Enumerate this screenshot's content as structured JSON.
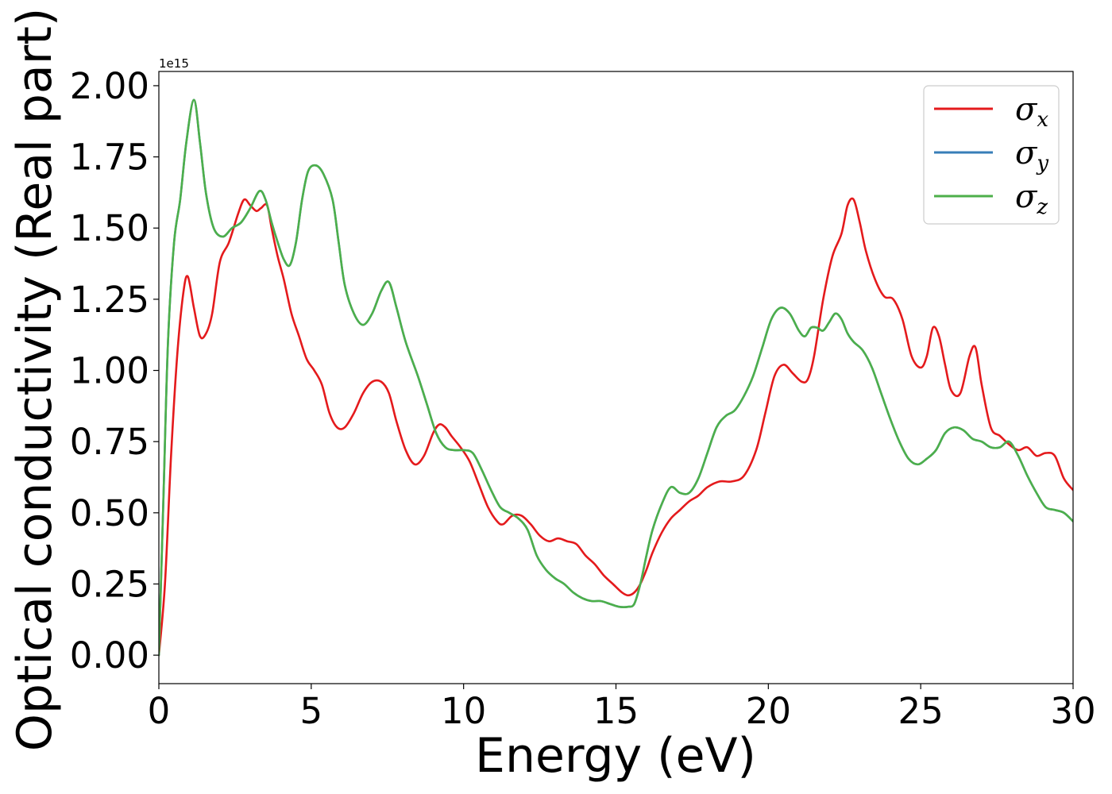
{
  "chart_data": {
    "type": "line",
    "xlabel": "Energy (eV)",
    "ylabel": "Optical conductivity (Real part)",
    "y_offset_text": "1e15",
    "xlim": [
      0,
      30
    ],
    "ylim": [
      -0.1,
      2.05
    ],
    "x_ticks": [
      0,
      5,
      10,
      15,
      20,
      25,
      30
    ],
    "x_tick_labels": [
      "0",
      "5",
      "10",
      "15",
      "20",
      "25",
      "30"
    ],
    "y_ticks": [
      0,
      0.25,
      0.5,
      0.75,
      1.0,
      1.25,
      1.5,
      1.75,
      2.0
    ],
    "y_tick_labels": [
      "0.00",
      "0.25",
      "0.50",
      "0.75",
      "1.00",
      "1.25",
      "1.50",
      "1.75",
      "2.00"
    ],
    "grid": false,
    "legend_position": "top-right",
    "series": [
      {
        "name": "σx",
        "symbol": "σ",
        "subscript": "x",
        "color": "#e41a1c",
        "x": [
          0,
          0.2,
          0.4,
          0.6,
          0.8,
          0.95,
          1.15,
          1.35,
          1.55,
          1.75,
          2.0,
          2.3,
          2.6,
          2.8,
          3.0,
          3.2,
          3.35,
          3.55,
          3.7,
          3.9,
          4.1,
          4.35,
          4.6,
          4.85,
          5.1,
          5.35,
          5.6,
          5.85,
          6.1,
          6.4,
          6.7,
          7.0,
          7.3,
          7.55,
          7.8,
          8.1,
          8.4,
          8.7,
          9.0,
          9.2,
          9.4,
          9.6,
          9.9,
          10.2,
          10.5,
          10.8,
          11.1,
          11.3,
          11.6,
          11.9,
          12.2,
          12.5,
          12.8,
          13.1,
          13.4,
          13.7,
          14.0,
          14.3,
          14.6,
          14.9,
          15.2,
          15.4,
          15.6,
          15.8,
          16.0,
          16.2,
          16.5,
          16.8,
          17.1,
          17.4,
          17.7,
          18.0,
          18.4,
          18.8,
          19.2,
          19.6,
          19.9,
          20.2,
          20.5,
          20.8,
          21.1,
          21.3,
          21.5,
          21.8,
          22.1,
          22.4,
          22.6,
          22.8,
          23.0,
          23.2,
          23.5,
          23.8,
          24.1,
          24.4,
          24.7,
          25.0,
          25.2,
          25.4,
          25.6,
          25.8,
          26.0,
          26.3,
          26.6,
          26.8,
          27.0,
          27.3,
          27.6,
          27.9,
          28.2,
          28.5,
          28.8,
          29.1,
          29.4,
          29.7,
          30.0
        ],
        "values": [
          0.0,
          0.25,
          0.7,
          1.05,
          1.27,
          1.33,
          1.22,
          1.12,
          1.13,
          1.2,
          1.38,
          1.45,
          1.55,
          1.6,
          1.58,
          1.56,
          1.57,
          1.58,
          1.5,
          1.4,
          1.32,
          1.2,
          1.12,
          1.04,
          1.0,
          0.95,
          0.85,
          0.8,
          0.8,
          0.85,
          0.92,
          0.96,
          0.96,
          0.92,
          0.82,
          0.72,
          0.67,
          0.7,
          0.78,
          0.81,
          0.8,
          0.77,
          0.73,
          0.68,
          0.6,
          0.52,
          0.47,
          0.46,
          0.49,
          0.49,
          0.46,
          0.42,
          0.4,
          0.41,
          0.4,
          0.39,
          0.35,
          0.32,
          0.28,
          0.25,
          0.22,
          0.21,
          0.22,
          0.25,
          0.3,
          0.36,
          0.43,
          0.48,
          0.51,
          0.54,
          0.56,
          0.59,
          0.61,
          0.61,
          0.63,
          0.72,
          0.85,
          0.98,
          1.02,
          0.99,
          0.96,
          0.97,
          1.05,
          1.25,
          1.4,
          1.48,
          1.58,
          1.6,
          1.52,
          1.42,
          1.32,
          1.26,
          1.25,
          1.18,
          1.05,
          1.01,
          1.05,
          1.15,
          1.12,
          1.02,
          0.93,
          0.92,
          1.05,
          1.08,
          0.95,
          0.8,
          0.77,
          0.74,
          0.72,
          0.73,
          0.7,
          0.71,
          0.7,
          0.62,
          0.58
        ]
      },
      {
        "name": "σy",
        "symbol": "σ",
        "subscript": "y",
        "color": "#377eb8",
        "x": [
          0,
          0.15,
          0.3,
          0.5,
          0.7,
          0.9,
          1.15,
          1.35,
          1.55,
          1.8,
          2.1,
          2.4,
          2.7,
          3.0,
          3.3,
          3.5,
          3.7,
          3.9,
          4.1,
          4.3,
          4.5,
          4.7,
          4.9,
          5.15,
          5.4,
          5.7,
          5.9,
          6.1,
          6.4,
          6.7,
          7.0,
          7.3,
          7.55,
          7.8,
          8.1,
          8.5,
          8.8,
          9.1,
          9.4,
          9.7,
          10.0,
          10.3,
          10.6,
          10.9,
          11.2,
          11.5,
          11.8,
          12.1,
          12.4,
          12.7,
          13.0,
          13.3,
          13.6,
          13.9,
          14.2,
          14.5,
          14.8,
          15.1,
          15.4,
          15.6,
          15.8,
          16.0,
          16.2,
          16.5,
          16.8,
          17.1,
          17.4,
          17.7,
          18.0,
          18.3,
          18.6,
          18.9,
          19.2,
          19.5,
          19.8,
          20.1,
          20.4,
          20.7,
          21.0,
          21.2,
          21.4,
          21.6,
          21.8,
          22.0,
          22.2,
          22.4,
          22.6,
          22.8,
          23.1,
          23.4,
          23.7,
          24.0,
          24.3,
          24.6,
          24.9,
          25.2,
          25.5,
          25.8,
          26.1,
          26.4,
          26.7,
          27.0,
          27.3,
          27.6,
          27.9,
          28.2,
          28.5,
          28.8,
          29.1,
          29.4,
          29.7,
          30.0
        ],
        "values": [
          0.0,
          0.55,
          1.1,
          1.45,
          1.6,
          1.8,
          1.95,
          1.8,
          1.62,
          1.5,
          1.47,
          1.5,
          1.52,
          1.57,
          1.63,
          1.6,
          1.52,
          1.45,
          1.39,
          1.37,
          1.45,
          1.6,
          1.7,
          1.72,
          1.69,
          1.6,
          1.45,
          1.3,
          1.2,
          1.16,
          1.2,
          1.28,
          1.31,
          1.22,
          1.1,
          0.98,
          0.88,
          0.78,
          0.73,
          0.72,
          0.72,
          0.71,
          0.65,
          0.58,
          0.52,
          0.5,
          0.48,
          0.44,
          0.35,
          0.3,
          0.27,
          0.25,
          0.22,
          0.2,
          0.19,
          0.19,
          0.18,
          0.17,
          0.17,
          0.18,
          0.25,
          0.35,
          0.44,
          0.53,
          0.59,
          0.57,
          0.57,
          0.62,
          0.71,
          0.8,
          0.84,
          0.86,
          0.91,
          0.98,
          1.08,
          1.18,
          1.22,
          1.2,
          1.14,
          1.12,
          1.15,
          1.15,
          1.14,
          1.17,
          1.2,
          1.18,
          1.13,
          1.1,
          1.07,
          1.01,
          0.92,
          0.83,
          0.75,
          0.69,
          0.67,
          0.69,
          0.72,
          0.78,
          0.8,
          0.79,
          0.76,
          0.75,
          0.73,
          0.73,
          0.75,
          0.7,
          0.63,
          0.57,
          0.52,
          0.51,
          0.5,
          0.47
        ]
      },
      {
        "name": "σz",
        "symbol": "σ",
        "subscript": "z",
        "color": "#4daf4a",
        "x": [
          0,
          0.15,
          0.3,
          0.5,
          0.7,
          0.9,
          1.15,
          1.35,
          1.55,
          1.8,
          2.1,
          2.4,
          2.7,
          3.0,
          3.3,
          3.5,
          3.7,
          3.9,
          4.1,
          4.3,
          4.5,
          4.7,
          4.9,
          5.15,
          5.4,
          5.7,
          5.9,
          6.1,
          6.4,
          6.7,
          7.0,
          7.3,
          7.55,
          7.8,
          8.1,
          8.5,
          8.8,
          9.1,
          9.4,
          9.7,
          10.0,
          10.3,
          10.6,
          10.9,
          11.2,
          11.5,
          11.8,
          12.1,
          12.4,
          12.7,
          13.0,
          13.3,
          13.6,
          13.9,
          14.2,
          14.5,
          14.8,
          15.1,
          15.4,
          15.6,
          15.8,
          16.0,
          16.2,
          16.5,
          16.8,
          17.1,
          17.4,
          17.7,
          18.0,
          18.3,
          18.6,
          18.9,
          19.2,
          19.5,
          19.8,
          20.1,
          20.4,
          20.7,
          21.0,
          21.2,
          21.4,
          21.6,
          21.8,
          22.0,
          22.2,
          22.4,
          22.6,
          22.8,
          23.1,
          23.4,
          23.7,
          24.0,
          24.3,
          24.6,
          24.9,
          25.2,
          25.5,
          25.8,
          26.1,
          26.4,
          26.7,
          27.0,
          27.3,
          27.6,
          27.9,
          28.2,
          28.5,
          28.8,
          29.1,
          29.4,
          29.7,
          30.0
        ],
        "values": [
          0.0,
          0.55,
          1.1,
          1.45,
          1.6,
          1.8,
          1.95,
          1.8,
          1.62,
          1.5,
          1.47,
          1.5,
          1.52,
          1.57,
          1.63,
          1.6,
          1.52,
          1.45,
          1.39,
          1.37,
          1.45,
          1.6,
          1.7,
          1.72,
          1.69,
          1.6,
          1.45,
          1.3,
          1.2,
          1.16,
          1.2,
          1.28,
          1.31,
          1.22,
          1.1,
          0.98,
          0.88,
          0.78,
          0.73,
          0.72,
          0.72,
          0.71,
          0.65,
          0.58,
          0.52,
          0.5,
          0.48,
          0.44,
          0.35,
          0.3,
          0.27,
          0.25,
          0.22,
          0.2,
          0.19,
          0.19,
          0.18,
          0.17,
          0.17,
          0.18,
          0.25,
          0.35,
          0.44,
          0.53,
          0.59,
          0.57,
          0.57,
          0.62,
          0.71,
          0.8,
          0.84,
          0.86,
          0.91,
          0.98,
          1.08,
          1.18,
          1.22,
          1.2,
          1.14,
          1.12,
          1.15,
          1.15,
          1.14,
          1.17,
          1.2,
          1.18,
          1.13,
          1.1,
          1.07,
          1.01,
          0.92,
          0.83,
          0.75,
          0.69,
          0.67,
          0.69,
          0.72,
          0.78,
          0.8,
          0.79,
          0.76,
          0.75,
          0.73,
          0.73,
          0.75,
          0.7,
          0.63,
          0.57,
          0.52,
          0.51,
          0.5,
          0.47
        ]
      }
    ]
  }
}
